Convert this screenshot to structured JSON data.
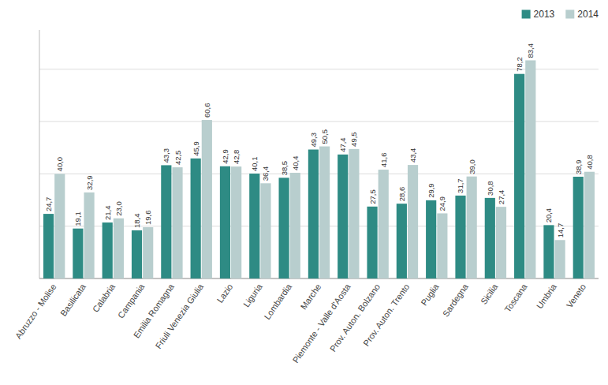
{
  "chart_data": {
    "type": "bar",
    "categories": [
      "Abruzzo - Molise",
      "Basilicata",
      "Calabria",
      "Campania",
      "Emilia Romagna",
      "Friuli Venezia Giulia",
      "Lazio",
      "Liguria",
      "Lombardia",
      "Marche",
      "Piemonte - Valle d'Aosta",
      "Prov. Auton. Bolzano",
      "Prov. Auton. Trento",
      "Puglia",
      "Sardegna",
      "Sicilia",
      "Toscana",
      "Umbria",
      "Veneto"
    ],
    "series": [
      {
        "name": "2013",
        "color": "#2e8b84",
        "values": [
          24.7,
          19.1,
          21.4,
          18.4,
          43.3,
          45.9,
          42.9,
          40.1,
          38.5,
          49.3,
          47.4,
          27.5,
          28.6,
          29.9,
          31.7,
          30.8,
          78.2,
          20.4,
          38.9
        ],
        "value_labels": [
          "24,7",
          "19,1",
          "21,4",
          "18,4",
          "43,3",
          "45,9",
          "42,9",
          "40,1",
          "38,5",
          "49,3",
          "47,4",
          "27,5",
          "28,6",
          "29,9",
          "31,7",
          "30,8",
          "78,2",
          "20,4",
          "38,9"
        ]
      },
      {
        "name": "2014",
        "color": "#b8cece",
        "values": [
          40.0,
          32.9,
          23.0,
          19.6,
          42.5,
          60.6,
          42.8,
          36.4,
          40.4,
          50.5,
          49.5,
          41.6,
          43.4,
          24.9,
          39.0,
          27.4,
          83.4,
          14.7,
          40.8
        ],
        "value_labels": [
          "40,0",
          "32,9",
          "23,0",
          "19,6",
          "42,5",
          "60,6",
          "42,8",
          "36,4",
          "40,4",
          "50,5",
          "49,5",
          "41,6",
          "43,4",
          "24,9",
          "39,0",
          "27,4",
          "83,4",
          "14,7",
          "40,8"
        ]
      }
    ],
    "ylim": [
      0,
      95
    ],
    "yticks": [
      0,
      20,
      40,
      60,
      80
    ],
    "grid": true,
    "legend": "upper right",
    "data_labels": true,
    "tick_labels": "x"
  }
}
